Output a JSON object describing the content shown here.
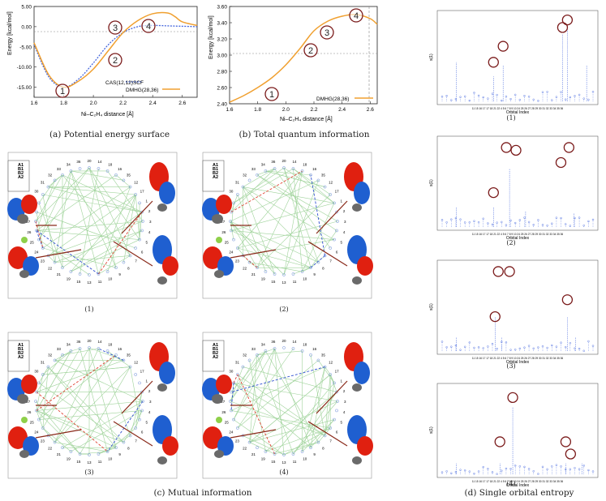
{
  "captions": {
    "a": "(a) Potential energy surface",
    "b": "(b) Total quantum information",
    "c": "(c) Mutual information",
    "d": "(d) Single orbital entropy"
  },
  "subcaptions": {
    "c1": "(1)",
    "c2": "(2)",
    "c3": "(3)",
    "c4": "(4)",
    "d1": "(1)",
    "d2": "(2)",
    "d3": "(3)",
    "d4": "(4)"
  },
  "colors": {
    "orange": "#f0a030",
    "blue": "#4466dd",
    "circle": "#7a1a1a",
    "orbital_red": "#e02010",
    "orbital_blue": "#1f5fd0",
    "green": "#9fd39a"
  },
  "chart_data": [
    {
      "type": "line",
      "title": "",
      "xlabel": "Ni–C₂H₄ distance [Å]",
      "ylabel": "Energy [kcal/mol]",
      "xlim": [
        1.6,
        2.7
      ],
      "ylim": [
        -17.5,
        5.0
      ],
      "xticks": [
        "1.6",
        "1.8",
        "2.0",
        "2.2",
        "2.4",
        "2.6"
      ],
      "yticks": [
        "5.00",
        "0.00",
        "-5.00",
        "-10.00",
        "-15.00"
      ],
      "series": [
        {
          "name": "CAS(12,12)SCF",
          "color": "#4466dd",
          "x": [
            1.6,
            1.7,
            1.8,
            1.9,
            2.0,
            2.1,
            2.2,
            2.3,
            2.4,
            2.5,
            2.6,
            2.7
          ],
          "y": [
            -4.5,
            -12.5,
            -15.0,
            -13.0,
            -9.0,
            -4.5,
            -1.5,
            0.0,
            0.3,
            0.2,
            0.1,
            0.0
          ]
        },
        {
          "name": "DMHG(28,36)",
          "color": "#f0a030",
          "x": [
            1.6,
            1.7,
            1.8,
            1.9,
            2.0,
            2.1,
            2.2,
            2.3,
            2.4,
            2.5,
            2.55,
            2.6,
            2.7
          ],
          "y": [
            -4.0,
            -12.0,
            -15.0,
            -13.5,
            -10.5,
            -6.0,
            -1.5,
            1.5,
            3.2,
            3.4,
            2.5,
            1.2,
            0.3
          ]
        }
      ],
      "markers": [
        "1",
        "2",
        "3",
        "4"
      ]
    },
    {
      "type": "line",
      "title": "",
      "xlabel": "Ni–C₂H₄ distance [Å]",
      "ylabel": "Energy [kcal/mol]",
      "xlim": [
        1.6,
        2.65
      ],
      "ylim": [
        2.4,
        3.6
      ],
      "xticks": [
        "1.6",
        "1.8",
        "2.0",
        "2.2",
        "2.4",
        "2.6"
      ],
      "yticks": [
        "3.60",
        "3.40",
        "3.20",
        "3.00",
        "2.80",
        "2.60",
        "2.40"
      ],
      "series": [
        {
          "name": "DMHG(28,36)",
          "color": "#f0a030",
          "x": [
            1.6,
            1.7,
            1.8,
            1.9,
            2.0,
            2.1,
            2.2,
            2.3,
            2.4,
            2.5,
            2.6,
            2.65
          ],
          "y": [
            2.42,
            2.5,
            2.6,
            2.72,
            2.88,
            3.08,
            3.3,
            3.42,
            3.48,
            3.5,
            3.45,
            3.38
          ]
        }
      ],
      "markers": [
        "1",
        "2",
        "3",
        "4"
      ]
    }
  ],
  "entropy": {
    "ylabel": "s(1)",
    "xlabel": "Orbital Index",
    "xticks": "11 15 16 17 17 18 21 22 4 5 6 7 8 9 10 24 25 26 27 28 29 30 31 32 33 34 35 36"
  },
  "mutual": {
    "legend": [
      "A1",
      "B1",
      "B2",
      "A2"
    ],
    "node_labels": [
      "20",
      "14",
      "18",
      "16",
      "35",
      "12",
      "17",
      "1",
      "2",
      "3",
      "4",
      "5",
      "6",
      "7",
      "8",
      "9",
      "10",
      "11",
      "13",
      "15",
      "19",
      "21",
      "22",
      "23",
      "24",
      "25",
      "26",
      "27",
      "28",
      "29",
      "30",
      "31",
      "32",
      "33",
      "34",
      "36"
    ]
  }
}
